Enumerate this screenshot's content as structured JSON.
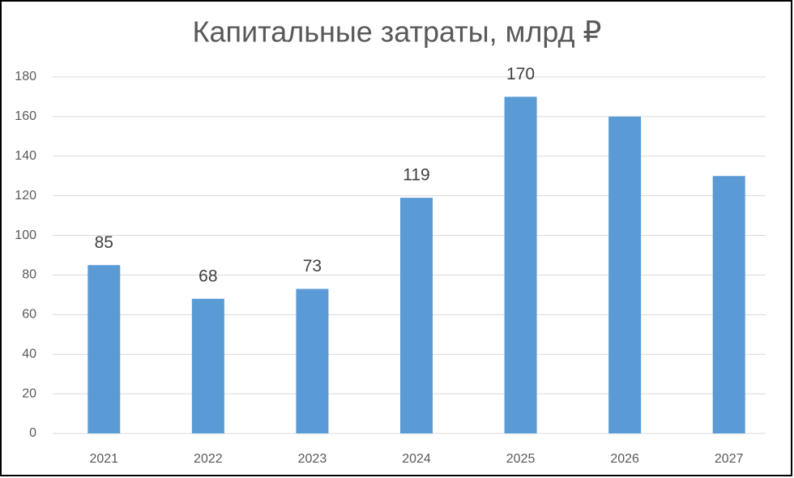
{
  "chart_data": {
    "type": "bar",
    "title": "Капитальные затраты, млрд ₽",
    "categories": [
      "2021",
      "2022",
      "2023",
      "2024",
      "2025",
      "2026",
      "2027"
    ],
    "values": [
      85,
      68,
      73,
      119,
      170,
      160,
      130
    ],
    "value_labels": [
      "85",
      "68",
      "73",
      "119",
      "170",
      null,
      null
    ],
    "color": "#5b9bd5",
    "ylim": [
      0,
      180
    ],
    "yticks": [
      0,
      20,
      40,
      60,
      80,
      100,
      120,
      140,
      160,
      180
    ],
    "grid": true
  }
}
